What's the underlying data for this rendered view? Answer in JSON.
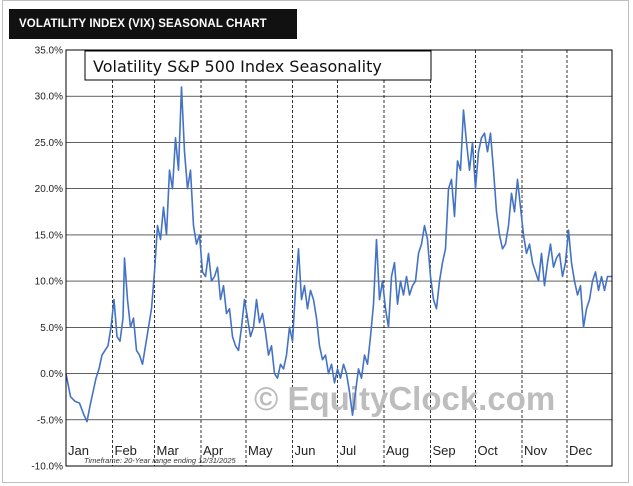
{
  "header": {
    "title": "VOLATILITY INDEX (VIX) SEASONAL CHART"
  },
  "watermark": "© EquityClock.com",
  "footnote": "Timeframe: 20-Year range ending 12/31/2025",
  "colors": {
    "line": "#4472c4",
    "header_bg": "#111111",
    "grid": "#000000"
  },
  "chart_data": {
    "type": "line",
    "title": "Volatility S&P 500 Index Seasonality",
    "xlabel": "",
    "ylabel": "",
    "ylim": [
      -10,
      35
    ],
    "yticks": [
      -10,
      -5,
      0,
      5,
      10,
      15,
      20,
      25,
      30,
      35
    ],
    "ytick_labels": [
      "-10.0%",
      "-5.0%",
      "0.0%",
      "5.0%",
      "10.0%",
      "15.0%",
      "20.0%",
      "25.0%",
      "30.0%",
      "35.0%"
    ],
    "x_unit": "day_of_year",
    "xlim": [
      1,
      365
    ],
    "months": [
      "Jan",
      "Feb",
      "Mar",
      "Apr",
      "May",
      "Jun",
      "Jul",
      "Aug",
      "Sep",
      "Oct",
      "Nov",
      "Dec"
    ],
    "grid": {
      "horizontal": true,
      "vertical_month_dashed": true
    },
    "legend": "none",
    "series": [
      {
        "values": [
          [
            1,
            0.0
          ],
          [
            4,
            -2.5
          ],
          [
            7,
            -3.0
          ],
          [
            10,
            -3.2
          ],
          [
            13,
            -4.5
          ],
          [
            15,
            -5.2
          ],
          [
            17,
            -3.5
          ],
          [
            19,
            -2.0
          ],
          [
            21,
            -0.5
          ],
          [
            23,
            0.5
          ],
          [
            25,
            2.0
          ],
          [
            27,
            2.5
          ],
          [
            29,
            3.0
          ],
          [
            31,
            5.0
          ],
          [
            33,
            8.0
          ],
          [
            35,
            4.0
          ],
          [
            37,
            3.5
          ],
          [
            39,
            6.0
          ],
          [
            40,
            12.5
          ],
          [
            42,
            8.0
          ],
          [
            44,
            5.0
          ],
          [
            46,
            6.0
          ],
          [
            48,
            2.5
          ],
          [
            50,
            2.0
          ],
          [
            52,
            1.0
          ],
          [
            54,
            3.0
          ],
          [
            56,
            5.0
          ],
          [
            58,
            7.0
          ],
          [
            60,
            11.0
          ],
          [
            62,
            16.0
          ],
          [
            64,
            14.5
          ],
          [
            66,
            18.0
          ],
          [
            68,
            15.0
          ],
          [
            70,
            22.0
          ],
          [
            72,
            20.0
          ],
          [
            74,
            25.5
          ],
          [
            76,
            22.0
          ],
          [
            78,
            31.0
          ],
          [
            80,
            24.0
          ],
          [
            82,
            20.0
          ],
          [
            84,
            22.0
          ],
          [
            86,
            16.0
          ],
          [
            88,
            14.0
          ],
          [
            90,
            15.0
          ],
          [
            92,
            11.0
          ],
          [
            94,
            10.5
          ],
          [
            96,
            13.0
          ],
          [
            98,
            10.0
          ],
          [
            100,
            10.5
          ],
          [
            102,
            11.5
          ],
          [
            104,
            8.0
          ],
          [
            106,
            9.5
          ],
          [
            108,
            6.5
          ],
          [
            110,
            7.0
          ],
          [
            112,
            4.0
          ],
          [
            114,
            3.0
          ],
          [
            116,
            2.5
          ],
          [
            118,
            5.0
          ],
          [
            120,
            8.0
          ],
          [
            122,
            6.0
          ],
          [
            124,
            4.0
          ],
          [
            126,
            5.0
          ],
          [
            128,
            8.0
          ],
          [
            130,
            5.5
          ],
          [
            132,
            6.5
          ],
          [
            134,
            4.5
          ],
          [
            136,
            2.0
          ],
          [
            138,
            3.0
          ],
          [
            140,
            0.0
          ],
          [
            142,
            -0.5
          ],
          [
            144,
            1.0
          ],
          [
            146,
            0.5
          ],
          [
            148,
            2.0
          ],
          [
            150,
            5.0
          ],
          [
            152,
            3.5
          ],
          [
            154,
            9.0
          ],
          [
            156,
            13.5
          ],
          [
            158,
            8.0
          ],
          [
            160,
            9.5
          ],
          [
            162,
            7.0
          ],
          [
            164,
            9.0
          ],
          [
            166,
            8.0
          ],
          [
            168,
            6.0
          ],
          [
            170,
            3.0
          ],
          [
            172,
            1.5
          ],
          [
            174,
            2.0
          ],
          [
            176,
            0.0
          ],
          [
            178,
            1.0
          ],
          [
            180,
            -1.0
          ],
          [
            182,
            0.5
          ],
          [
            184,
            -0.5
          ],
          [
            186,
            1.0
          ],
          [
            188,
            0.0
          ],
          [
            190,
            -2.0
          ],
          [
            192,
            -4.5
          ],
          [
            194,
            -2.0
          ],
          [
            196,
            0.5
          ],
          [
            198,
            -0.5
          ],
          [
            200,
            2.0
          ],
          [
            202,
            1.0
          ],
          [
            204,
            4.0
          ],
          [
            206,
            7.5
          ],
          [
            208,
            14.5
          ],
          [
            210,
            8.0
          ],
          [
            212,
            10.0
          ],
          [
            214,
            7.0
          ],
          [
            216,
            5.0
          ],
          [
            218,
            10.5
          ],
          [
            220,
            12.0
          ],
          [
            222,
            7.5
          ],
          [
            224,
            10.0
          ],
          [
            226,
            8.5
          ],
          [
            228,
            10.5
          ],
          [
            230,
            8.5
          ],
          [
            232,
            9.5
          ],
          [
            234,
            10.0
          ],
          [
            236,
            13.0
          ],
          [
            238,
            14.0
          ],
          [
            240,
            16.0
          ],
          [
            242,
            14.5
          ],
          [
            244,
            10.5
          ],
          [
            246,
            8.0
          ],
          [
            248,
            7.0
          ],
          [
            250,
            10.0
          ],
          [
            252,
            12.0
          ],
          [
            254,
            13.5
          ],
          [
            256,
            20.0
          ],
          [
            258,
            21.0
          ],
          [
            260,
            17.0
          ],
          [
            262,
            23.0
          ],
          [
            264,
            22.0
          ],
          [
            266,
            28.5
          ],
          [
            268,
            25.0
          ],
          [
            270,
            22.0
          ],
          [
            272,
            25.0
          ],
          [
            274,
            20.0
          ],
          [
            276,
            24.0
          ],
          [
            278,
            25.5
          ],
          [
            280,
            26.0
          ],
          [
            282,
            24.0
          ],
          [
            284,
            26.0
          ],
          [
            286,
            22.0
          ],
          [
            288,
            17.5
          ],
          [
            290,
            15.0
          ],
          [
            292,
            13.5
          ],
          [
            294,
            14.0
          ],
          [
            296,
            16.0
          ],
          [
            298,
            19.5
          ],
          [
            300,
            17.5
          ],
          [
            302,
            21.0
          ],
          [
            304,
            18.0
          ],
          [
            306,
            15.0
          ],
          [
            308,
            13.0
          ],
          [
            310,
            14.0
          ],
          [
            312,
            12.0
          ],
          [
            314,
            11.0
          ],
          [
            316,
            10.0
          ],
          [
            318,
            13.0
          ],
          [
            320,
            9.5
          ],
          [
            322,
            12.0
          ],
          [
            324,
            14.0
          ],
          [
            326,
            11.5
          ],
          [
            328,
            12.5
          ],
          [
            330,
            13.0
          ],
          [
            332,
            10.5
          ],
          [
            334,
            12.0
          ],
          [
            336,
            15.5
          ],
          [
            338,
            12.0
          ],
          [
            340,
            10.0
          ],
          [
            342,
            8.5
          ],
          [
            344,
            9.5
          ],
          [
            346,
            5.0
          ],
          [
            348,
            7.0
          ],
          [
            350,
            8.0
          ],
          [
            352,
            10.0
          ],
          [
            354,
            11.0
          ],
          [
            356,
            9.0
          ],
          [
            358,
            10.5
          ],
          [
            360,
            9.0
          ],
          [
            362,
            10.5
          ],
          [
            365,
            10.5
          ]
        ]
      }
    ]
  }
}
